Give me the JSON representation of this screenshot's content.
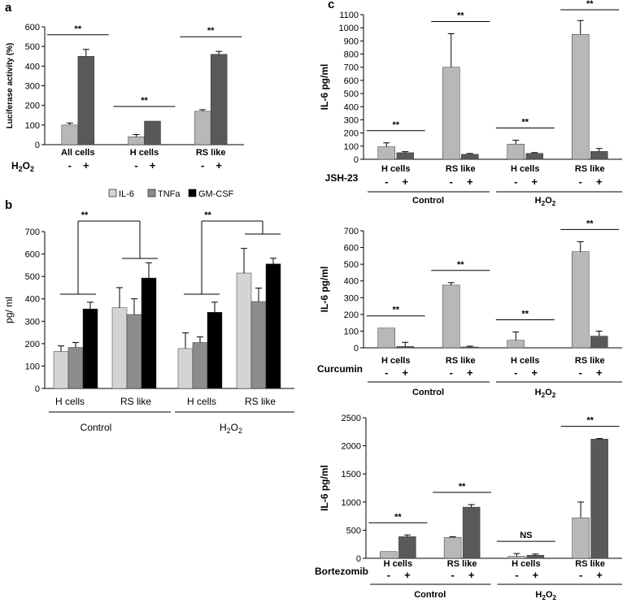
{
  "colors": {
    "light_bar": "#b8b8b8",
    "dark_bar": "#595959",
    "il6": "#d4d4d4",
    "tnfa": "#8c8c8c",
    "gmcsf": "#000000"
  },
  "chart_data": [
    {
      "id": "a",
      "panel_label": "a",
      "type": "bar",
      "ylabel": "Luciferase activity (%)",
      "ylim": [
        0,
        600
      ],
      "yticks": [
        "0",
        "100",
        "200",
        "300",
        "400",
        "500",
        "600"
      ],
      "categories": [
        "All cells",
        "H cells",
        "RS like"
      ],
      "treatment_label": "H2O2",
      "signs": [
        "-",
        "+"
      ],
      "series": [
        {
          "name": "-",
          "values": [
            100,
            40,
            170
          ],
          "errors": [
            10,
            12,
            8
          ]
        },
        {
          "name": "+",
          "values": [
            450,
            120,
            460
          ],
          "errors": [
            35,
            0,
            15
          ]
        }
      ],
      "significance": [
        {
          "group": 0,
          "label": "**"
        },
        {
          "group": 1,
          "label": "**"
        },
        {
          "group": 2,
          "label": "**"
        }
      ]
    },
    {
      "id": "b",
      "panel_label": "b",
      "type": "bar",
      "ylabel": "pg/ ml",
      "ylim": [
        0,
        700
      ],
      "yticks": [
        "0",
        "100",
        "200",
        "300",
        "400",
        "500",
        "600",
        "700"
      ],
      "legend": [
        "IL-6",
        "TNFa",
        "GM-CSF"
      ],
      "categories": [
        "H cells",
        "RS like",
        "H cells",
        "RS like"
      ],
      "group_labels": [
        "Control",
        "H2O2"
      ],
      "series": [
        {
          "name": "IL-6",
          "values": [
            165,
            360,
            178,
            515
          ],
          "errors": [
            25,
            90,
            70,
            110
          ]
        },
        {
          "name": "TNFa",
          "values": [
            183,
            330,
            205,
            388
          ],
          "errors": [
            22,
            70,
            25,
            60
          ]
        },
        {
          "name": "GM-CSF",
          "values": [
            355,
            493,
            340,
            556
          ],
          "errors": [
            30,
            68,
            45,
            25
          ]
        }
      ],
      "significance": [
        {
          "label": "**"
        },
        {
          "label": "**"
        }
      ]
    },
    {
      "id": "c1",
      "panel_label": "c",
      "type": "bar",
      "ylabel": "IL-6 pg/ml",
      "ylim": [
        0,
        1100
      ],
      "yticks": [
        "0",
        "100",
        "200",
        "300",
        "400",
        "500",
        "600",
        "700",
        "800",
        "900",
        "1000",
        "1100"
      ],
      "categories": [
        "H cells",
        "RS like",
        "H cells",
        "RS like"
      ],
      "treatment_label": "JSH-23",
      "signs": [
        "-",
        "+"
      ],
      "group_labels": [
        "Control",
        "H2O2"
      ],
      "series": [
        {
          "name": "-",
          "values": [
            95,
            700,
            115,
            950
          ],
          "errors": [
            30,
            255,
            30,
            105
          ]
        },
        {
          "name": "+",
          "values": [
            50,
            38,
            45,
            60
          ],
          "errors": [
            8,
            6,
            6,
            22
          ]
        }
      ],
      "significance": [
        "**",
        "**",
        "**",
        "**"
      ]
    },
    {
      "id": "c2",
      "type": "bar",
      "ylabel": "IL-6 pg/ml",
      "ylim": [
        0,
        700
      ],
      "yticks": [
        "0",
        "100",
        "200",
        "300",
        "400",
        "500",
        "600",
        "700"
      ],
      "categories": [
        "H cells",
        "RS like",
        "H cells",
        "RS like"
      ],
      "treatment_label": "Curcumin",
      "signs": [
        "-",
        "+"
      ],
      "group_labels": [
        "Control",
        "H2O2"
      ],
      "series": [
        {
          "name": "-",
          "values": [
            118,
            375,
            45,
            575
          ],
          "errors": [
            0,
            15,
            50,
            60
          ]
        },
        {
          "name": "+",
          "values": [
            8,
            5,
            0,
            70
          ],
          "errors": [
            25,
            5,
            0,
            30
          ]
        }
      ],
      "significance": [
        "**",
        "**",
        "**",
        "**"
      ]
    },
    {
      "id": "c3",
      "type": "bar",
      "ylabel": "IL-6 pg/ml",
      "ylim": [
        0,
        2500
      ],
      "yticks": [
        "0",
        "500",
        "1000",
        "1500",
        "2000",
        "2500"
      ],
      "categories": [
        "H cells",
        "RS like",
        "H cells",
        "RS like"
      ],
      "treatment_label": "Bortezomib",
      "signs": [
        "-",
        "+"
      ],
      "group_labels": [
        "Control",
        "H2O2"
      ],
      "series": [
        {
          "name": "-",
          "values": [
            120,
            370,
            35,
            720
          ],
          "errors": [
            0,
            15,
            50,
            280
          ]
        },
        {
          "name": "+",
          "values": [
            385,
            910,
            55,
            2120
          ],
          "errors": [
            30,
            45,
            20,
            10
          ]
        }
      ],
      "significance": [
        "**",
        "**",
        "NS",
        "**"
      ]
    }
  ]
}
